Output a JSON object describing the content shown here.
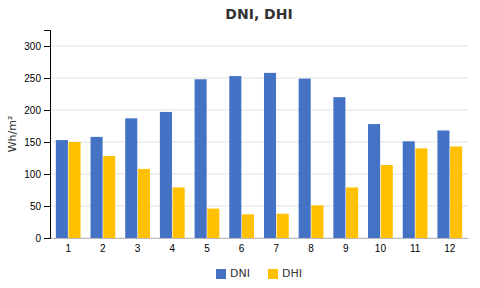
{
  "chart_data": {
    "type": "bar",
    "title": "DNI, DHI",
    "ylabel": "Wh/m²",
    "categories": [
      "1",
      "2",
      "3",
      "4",
      "5",
      "6",
      "7",
      "8",
      "9",
      "10",
      "11",
      "12"
    ],
    "series": [
      {
        "name": "DNI",
        "color": "#4472C4",
        "values": [
          153,
          158,
          187,
          197,
          248,
          253,
          258,
          249,
          220,
          178,
          151,
          168
        ]
      },
      {
        "name": "DHI",
        "color": "#FFC000",
        "values": [
          150,
          128,
          108,
          79,
          46,
          37,
          38,
          51,
          79,
          114,
          140,
          143
        ]
      }
    ],
    "ylim": [
      0,
      325
    ],
    "yticks": [
      0,
      50,
      100,
      150,
      200,
      250,
      300
    ],
    "grid": true,
    "legend": "bottom"
  }
}
